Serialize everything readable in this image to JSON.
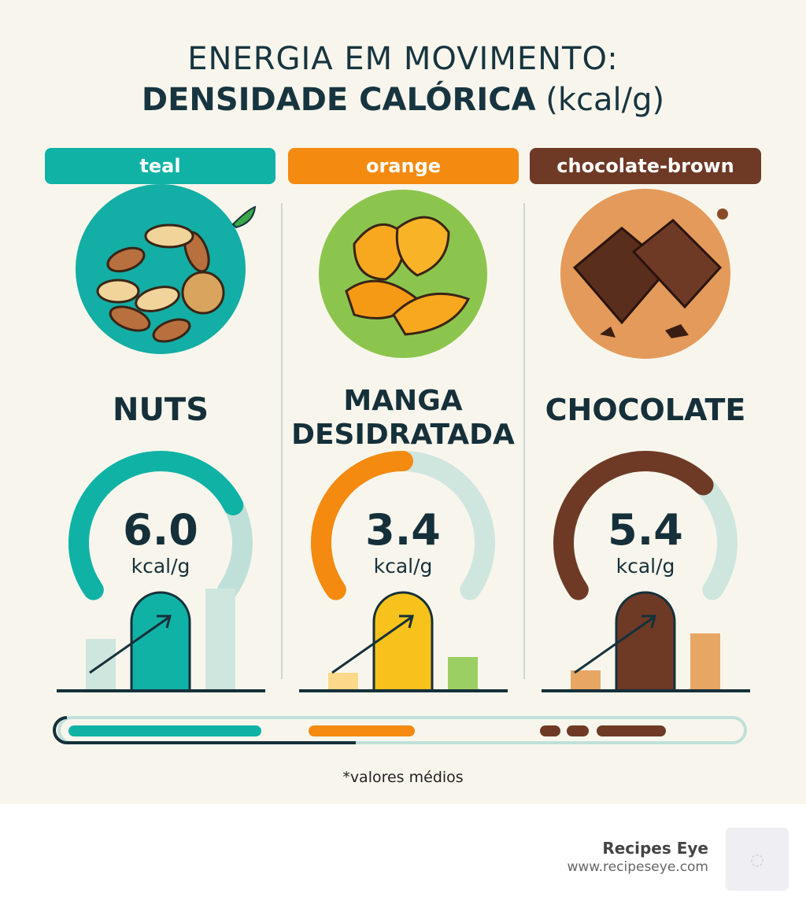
{
  "title": {
    "line1": "ENERGIA EM MOVIMENTO:",
    "line2_bold": "DENSIDADE CALÓRICA",
    "line2_unit": "(kcal/g)"
  },
  "columns": [
    {
      "tag": "teal",
      "name": "NUTS",
      "value": "6.0",
      "unit": "kcal/g",
      "color": "#10b2a6",
      "light": "#bfe0d8",
      "gauge_fill": 0.75,
      "icon": "mixed-nuts-icon"
    },
    {
      "tag": "orange",
      "name_line1": "MANGA",
      "name_line2": "DESIDRATADA",
      "value": "3.4",
      "unit": "kcal/g",
      "color": "#f48a10",
      "light": "#cfe6df",
      "gauge_fill": 0.5,
      "icon": "dried-mango-icon"
    },
    {
      "tag": "chocolate-brown",
      "name": "CHOCOLATE",
      "value": "5.4",
      "unit": "kcal/g",
      "color": "#6e3a26",
      "light": "#cfe6df",
      "gauge_fill": 0.68,
      "icon": "chocolate-bar-icon"
    }
  ],
  "footnote": "*valores médios",
  "footer": {
    "brand": "Recipes Eye",
    "url": "www.recipeseye.com"
  }
}
